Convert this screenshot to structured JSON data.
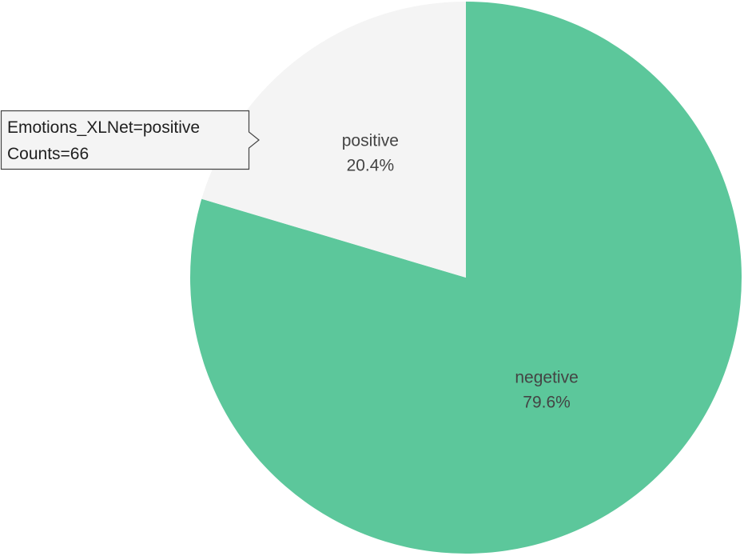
{
  "chart_data": {
    "type": "pie",
    "slices": [
      {
        "label": "negetive",
        "percent_label": "79.6%",
        "fraction": 0.796,
        "color": "#5cc79b"
      },
      {
        "label": "positive",
        "percent_label": "20.4%",
        "fraction": 0.204,
        "color": "#f4f4f4",
        "count": 66
      }
    ],
    "tooltip": {
      "line1": "Emotions_XLNet=positive",
      "line2": "Counts=66"
    }
  }
}
